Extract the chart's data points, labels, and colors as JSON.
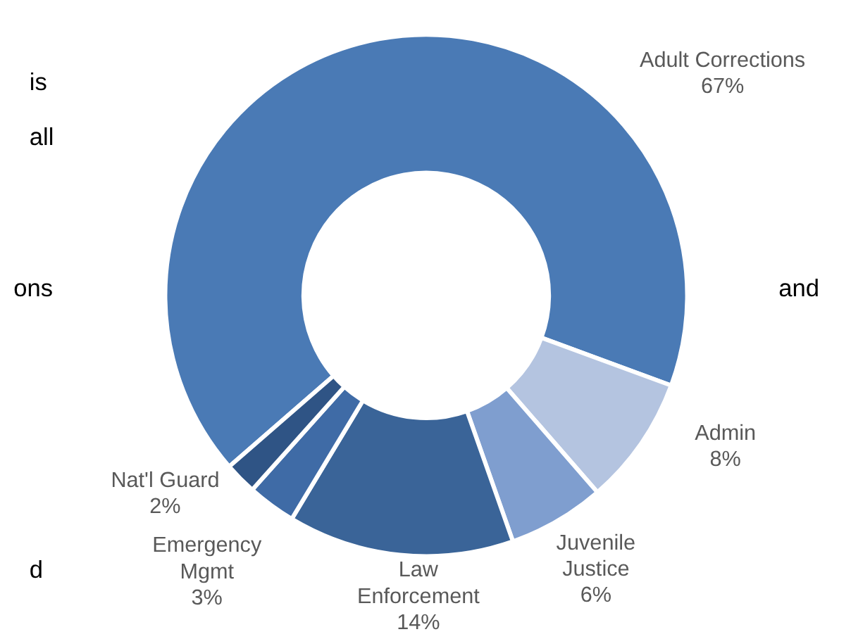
{
  "chart_data": {
    "type": "donut",
    "categories": [
      "Adult Corrections",
      "Admin",
      "Juvenile Justice",
      "Law Enforcement",
      "Emergency Mgmt",
      "Nat'l Guard"
    ],
    "values": [
      67,
      8,
      6,
      14,
      3,
      2
    ],
    "colors": [
      "#4a7ab5",
      "#b4c4e0",
      "#7f9ecf",
      "#3a6498",
      "#3f6ba6",
      "#2f5485"
    ],
    "annotations": [
      "is",
      "all",
      "ons",
      "and",
      "d"
    ],
    "value_labels": [
      "67%",
      "8%",
      "6%",
      "14%",
      "3%",
      "2%"
    ]
  }
}
